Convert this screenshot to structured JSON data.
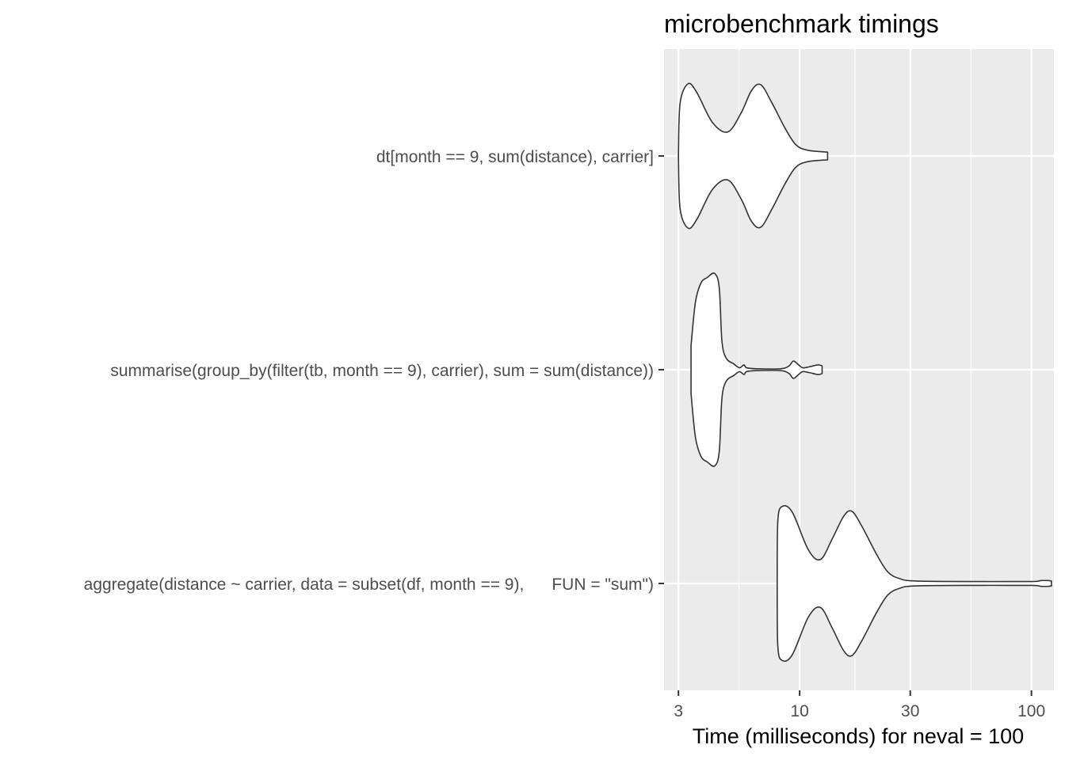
{
  "chart_data": {
    "type": "violin",
    "title": "microbenchmark timings",
    "xlabel": "Time (milliseconds) for neval = 100",
    "ylabel": "",
    "x_scale": "log10",
    "xlim": [
      2.6,
      125
    ],
    "x_ticks": [
      3,
      10,
      30,
      100
    ],
    "x_tick_labels": [
      "3",
      "10",
      "30",
      "100"
    ],
    "x_minor_ticks": [
      5.477,
      17.32,
      54.77
    ],
    "grid": true,
    "legend": "none",
    "colors": {
      "panel": "#ebebeb",
      "grid": "#ffffff",
      "violin_fill": "#ffffff",
      "violin_outline": "#333333",
      "tick_text": "#4d4d4d"
    },
    "categories": [
      "dt[month == 9, sum(distance), carrier]",
      "summarise(group_by(filter(tb, month == 9), carrier), sum = sum(distance))",
      "aggregate(distance ~ carrier, data = subset(df, month == 9),      FUN = \"sum\")"
    ],
    "series": [
      {
        "expr": "dt[month == 9, sum(distance), carrier]",
        "min": 3.0,
        "max": 13.2,
        "density_profile": [
          [
            3.0,
            0.02
          ],
          [
            3.05,
            0.55
          ],
          [
            3.3,
            0.75
          ],
          [
            3.6,
            0.66
          ],
          [
            4.2,
            0.35
          ],
          [
            4.9,
            0.25
          ],
          [
            5.6,
            0.45
          ],
          [
            6.2,
            0.68
          ],
          [
            6.8,
            0.74
          ],
          [
            7.6,
            0.55
          ],
          [
            8.6,
            0.3
          ],
          [
            9.6,
            0.12
          ],
          [
            10.8,
            0.06
          ],
          [
            13.2,
            0.04
          ]
        ]
      },
      {
        "expr": "summarise(group_by(filter(tb, month == 9), carrier), sum = sum(distance))",
        "min": 3.4,
        "max": 12.5,
        "density_profile": [
          [
            3.4,
            0.25
          ],
          [
            3.55,
            0.7
          ],
          [
            3.75,
            0.9
          ],
          [
            4.0,
            0.96
          ],
          [
            4.3,
            1.0
          ],
          [
            4.5,
            0.85
          ],
          [
            4.62,
            0.3
          ],
          [
            4.82,
            0.12
          ],
          [
            5.2,
            0.06
          ],
          [
            5.5,
            0.02
          ],
          [
            5.75,
            0.05
          ],
          [
            5.9,
            0.02
          ],
          [
            6.5,
            0.01
          ],
          [
            8.3,
            0.01
          ],
          [
            9.0,
            0.04
          ],
          [
            9.4,
            0.09
          ],
          [
            9.9,
            0.05
          ],
          [
            10.3,
            0.02
          ],
          [
            11.0,
            0.03
          ],
          [
            12.0,
            0.05
          ],
          [
            12.5,
            0.04
          ]
        ]
      },
      {
        "expr": "aggregate(distance ~ carrier, data = subset(df, month == 9),      FUN = \"sum\")",
        "min": 8.0,
        "max": 122.0,
        "density_profile": [
          [
            8.0,
            0.02
          ],
          [
            8.05,
            0.65
          ],
          [
            8.4,
            0.8
          ],
          [
            9.3,
            0.74
          ],
          [
            10.9,
            0.35
          ],
          [
            12.3,
            0.25
          ],
          [
            13.8,
            0.46
          ],
          [
            15.5,
            0.7
          ],
          [
            16.8,
            0.75
          ],
          [
            18.5,
            0.6
          ],
          [
            21.5,
            0.3
          ],
          [
            24.0,
            0.12
          ],
          [
            27.0,
            0.05
          ],
          [
            32.0,
            0.025
          ],
          [
            60.0,
            0.02
          ],
          [
            100.0,
            0.02
          ],
          [
            110.0,
            0.03
          ],
          [
            118.0,
            0.03
          ],
          [
            122.0,
            0.025
          ]
        ]
      }
    ]
  }
}
